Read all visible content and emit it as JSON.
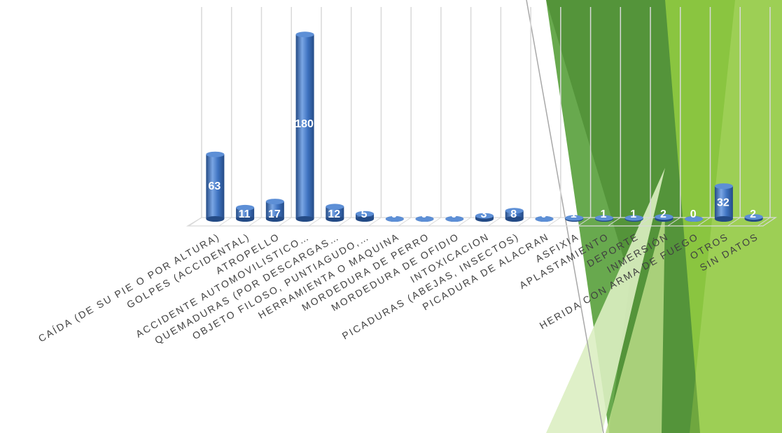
{
  "chart_data": {
    "type": "bar",
    "title": "",
    "xlabel": "",
    "ylabel": "",
    "ylim": [
      0,
      200
    ],
    "grid": true,
    "legend": "none",
    "categories": [
      "CAÍDA (DE SU PIE O POR ALTURA)",
      "GOLPES (ACCIDENTAL)",
      "ATROPELLO",
      "ACCIDENTE AUTOMOVILISTICO…",
      "QUEMADURAS (POR DESCARGAS…",
      "OBJETO FILOSO, PUNTIAGUDO,…",
      "HERRAMIENTA O MAQUINA",
      "MORDEDURA DE PERRO",
      "MORDEDURA DE OFIDIO",
      "INTOXICACION",
      "PICADURAS (ABEJAS, INSECTOS)",
      "PICADURA DE ALACRAN",
      "ASFIXIA",
      "APLASTAMIENTO",
      "DEPORTE",
      "INMERSIÓN",
      "HERIDA CON ARMA DE FUEGO",
      "OTROS",
      "SIN DATOS"
    ],
    "values": [
      63,
      11,
      17,
      180,
      12,
      5,
      0,
      0,
      0,
      3,
      8,
      0,
      1,
      1,
      1,
      2,
      0,
      32,
      2
    ],
    "colors": {
      "bar": "#3f73c1",
      "bar_dark": "#244b86",
      "bar_light": "#7aa6e4",
      "bar_top": "#5d8fd6",
      "grid": "#d9d9d9",
      "label": "#404040",
      "value_label": "#ffffff"
    }
  },
  "decoration": {
    "theme_colors": [
      "#8cc63f",
      "#4e9a2f",
      "#3c7a24",
      "#b8db86",
      "#dbeec2"
    ]
  }
}
